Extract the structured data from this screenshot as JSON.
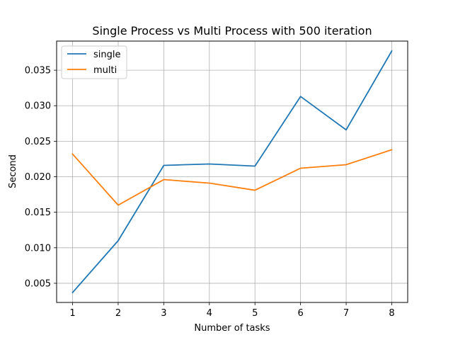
{
  "chart_data": {
    "type": "line",
    "title": "Single Process vs Multi Process with 500 iteration",
    "xlabel": "Number of tasks",
    "ylabel": "Second",
    "x": [
      1,
      2,
      3,
      4,
      5,
      6,
      7,
      8
    ],
    "xticks": [
      "1",
      "2",
      "3",
      "4",
      "5",
      "6",
      "7",
      "8"
    ],
    "yticks": [
      0.005,
      0.01,
      0.015,
      0.02,
      0.025,
      0.03,
      0.035
    ],
    "ytick_labels": [
      "0.005",
      "0.010",
      "0.015",
      "0.020",
      "0.025",
      "0.030",
      "0.035"
    ],
    "xlim": [
      0.65,
      8.35
    ],
    "ylim": [
      0.0023,
      0.0391
    ],
    "grid": true,
    "legend_position": "top-left",
    "series": [
      {
        "name": "single",
        "color": "#1f77b4",
        "values": [
          0.0037,
          0.011,
          0.0216,
          0.0218,
          0.0215,
          0.0313,
          0.0266,
          0.0377
        ]
      },
      {
        "name": "multi",
        "color": "#ff7f0e",
        "values": [
          0.0232,
          0.016,
          0.0196,
          0.0191,
          0.0181,
          0.0212,
          0.0217,
          0.0238
        ]
      }
    ]
  }
}
